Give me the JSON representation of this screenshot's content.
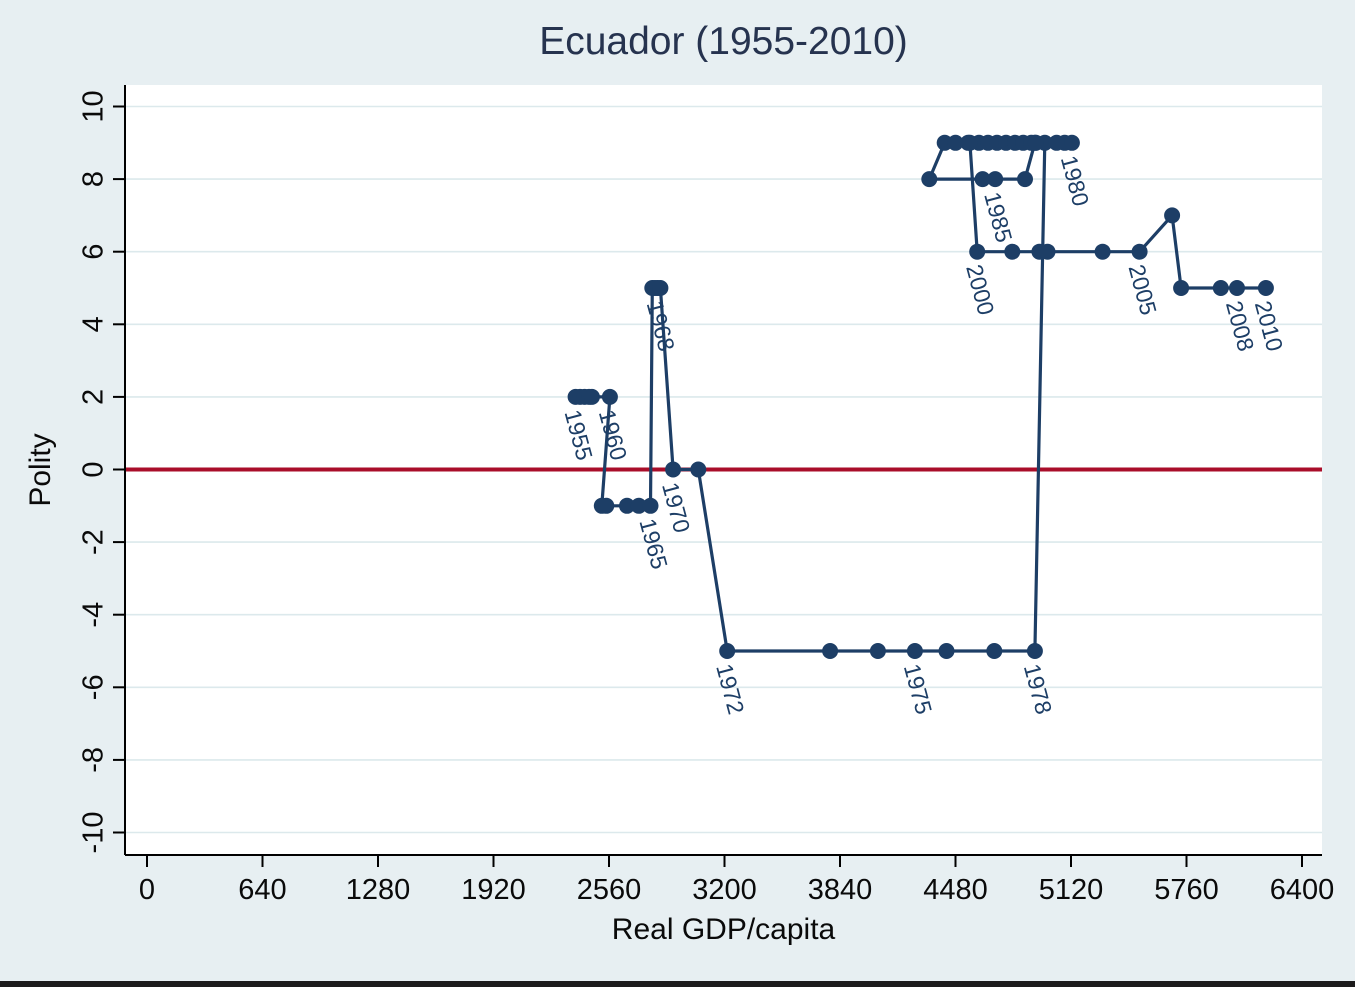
{
  "title": "Ecuador (1955-2010)",
  "colors": {
    "background": "#e7eff2",
    "plot_bg": "#ffffff",
    "grid": "#dce9ec",
    "series": "#1d3e66",
    "zero_line": "#a90e2a",
    "axis": "#000000",
    "tick_text": "#0a0a0a",
    "title_text": "#26334f"
  },
  "chart_data": {
    "type": "line",
    "title": "Ecuador (1955-2010)",
    "xlabel": "Real GDP/capita",
    "ylabel": "Polity",
    "xlim": [
      0,
      6400
    ],
    "ylim": [
      -10,
      10
    ],
    "x_ticks": [
      0,
      640,
      1280,
      1920,
      2560,
      3200,
      3840,
      4480,
      5120,
      5760,
      6400
    ],
    "y_ticks": [
      10,
      8,
      6,
      4,
      2,
      0,
      -2,
      -4,
      -6,
      -8,
      -10
    ],
    "grid": "horizontal-only",
    "legend": "none",
    "zero_reference_line": 0,
    "marker": "filled-circle",
    "label_angle_deg": 75,
    "labeled_years": [
      "1955",
      "1960",
      "1965",
      "1968",
      "1970",
      "1972",
      "1975",
      "1978",
      "1980",
      "1985",
      "2000",
      "2005",
      "2008",
      "2010"
    ],
    "series": [
      {
        "name": "Ecuador Polity vs Real GDP/capita path (1955-2010)",
        "points": [
          {
            "year": 1955,
            "gdp": 2375,
            "polity": 2,
            "label": "1955"
          },
          {
            "year": 1956,
            "gdp": 2400,
            "polity": 2
          },
          {
            "year": 1957,
            "gdp": 2425,
            "polity": 2
          },
          {
            "year": 1958,
            "gdp": 2450,
            "polity": 2
          },
          {
            "year": 1959,
            "gdp": 2465,
            "polity": 2
          },
          {
            "year": 1960,
            "gdp": 2565,
            "polity": 2,
            "label": "1960"
          },
          {
            "year": 1961,
            "gdp": 2520,
            "polity": -1
          },
          {
            "year": 1962,
            "gdp": 2545,
            "polity": -1
          },
          {
            "year": 1963,
            "gdp": 2660,
            "polity": -1
          },
          {
            "year": 1964,
            "gdp": 2725,
            "polity": -1
          },
          {
            "year": 1965,
            "gdp": 2790,
            "polity": -1,
            "label": "1965"
          },
          {
            "year": 1966,
            "gdp": 2800,
            "polity": 5
          },
          {
            "year": 1967,
            "gdp": 2815,
            "polity": 5
          },
          {
            "year": 1968,
            "gdp": 2830,
            "polity": 5,
            "label": "1968"
          },
          {
            "year": 1969,
            "gdp": 2845,
            "polity": 5
          },
          {
            "year": 1970,
            "gdp": 2915,
            "polity": 0,
            "label": "1970"
          },
          {
            "year": 1971,
            "gdp": 3055,
            "polity": 0
          },
          {
            "year": 1972,
            "gdp": 3215,
            "polity": -5,
            "label": "1972"
          },
          {
            "year": 1973,
            "gdp": 3785,
            "polity": -5
          },
          {
            "year": 1974,
            "gdp": 4050,
            "polity": -5
          },
          {
            "year": 1975,
            "gdp": 4255,
            "polity": -5,
            "label": "1975"
          },
          {
            "year": 1976,
            "gdp": 4430,
            "polity": -5
          },
          {
            "year": 1977,
            "gdp": 4695,
            "polity": -5
          },
          {
            "year": 1978,
            "gdp": 4920,
            "polity": -5,
            "label": "1978"
          },
          {
            "year": 1979,
            "gdp": 4975,
            "polity": 9
          },
          {
            "year": 1980,
            "gdp": 5125,
            "polity": 9,
            "label": "1980"
          },
          {
            "year": 1981,
            "gdp": 5085,
            "polity": 9
          },
          {
            "year": 1982,
            "gdp": 5040,
            "polity": 9
          },
          {
            "year": 1983,
            "gdp": 4920,
            "polity": 9
          },
          {
            "year": 1984,
            "gdp": 4865,
            "polity": 8
          },
          {
            "year": 1985,
            "gdp": 4700,
            "polity": 8,
            "label": "1985"
          },
          {
            "year": 1986,
            "gdp": 4630,
            "polity": 8
          },
          {
            "year": 1987,
            "gdp": 4335,
            "polity": 8
          },
          {
            "year": 1988,
            "gdp": 4420,
            "polity": 9
          },
          {
            "year": 1989,
            "gdp": 4480,
            "polity": 9
          },
          {
            "year": 1990,
            "gdp": 4550,
            "polity": 9
          },
          {
            "year": 1991,
            "gdp": 4610,
            "polity": 9
          },
          {
            "year": 1992,
            "gdp": 4660,
            "polity": 9
          },
          {
            "year": 1993,
            "gdp": 4710,
            "polity": 9
          },
          {
            "year": 1994,
            "gdp": 4760,
            "polity": 9
          },
          {
            "year": 1995,
            "gdp": 4810,
            "polity": 9
          },
          {
            "year": 1996,
            "gdp": 4855,
            "polity": 9
          },
          {
            "year": 1997,
            "gdp": 4900,
            "polity": 9
          },
          {
            "year": 1998,
            "gdp": 4925,
            "polity": 9
          },
          {
            "year": 1999,
            "gdp": 4560,
            "polity": 9
          },
          {
            "year": 2000,
            "gdp": 4600,
            "polity": 6,
            "label": "2000"
          },
          {
            "year": 2001,
            "gdp": 4795,
            "polity": 6
          },
          {
            "year": 2002,
            "gdp": 4945,
            "polity": 6
          },
          {
            "year": 2003,
            "gdp": 4990,
            "polity": 6
          },
          {
            "year": 2004,
            "gdp": 5295,
            "polity": 6
          },
          {
            "year": 2005,
            "gdp": 5500,
            "polity": 6,
            "label": "2005"
          },
          {
            "year": 2006,
            "gdp": 5680,
            "polity": 7
          },
          {
            "year": 2007,
            "gdp": 5730,
            "polity": 5
          },
          {
            "year": 2008,
            "gdp": 6040,
            "polity": 5,
            "label": "2008"
          },
          {
            "year": 2009,
            "gdp": 5950,
            "polity": 5
          },
          {
            "year": 2010,
            "gdp": 6200,
            "polity": 5,
            "label": "2010"
          }
        ]
      }
    ]
  }
}
